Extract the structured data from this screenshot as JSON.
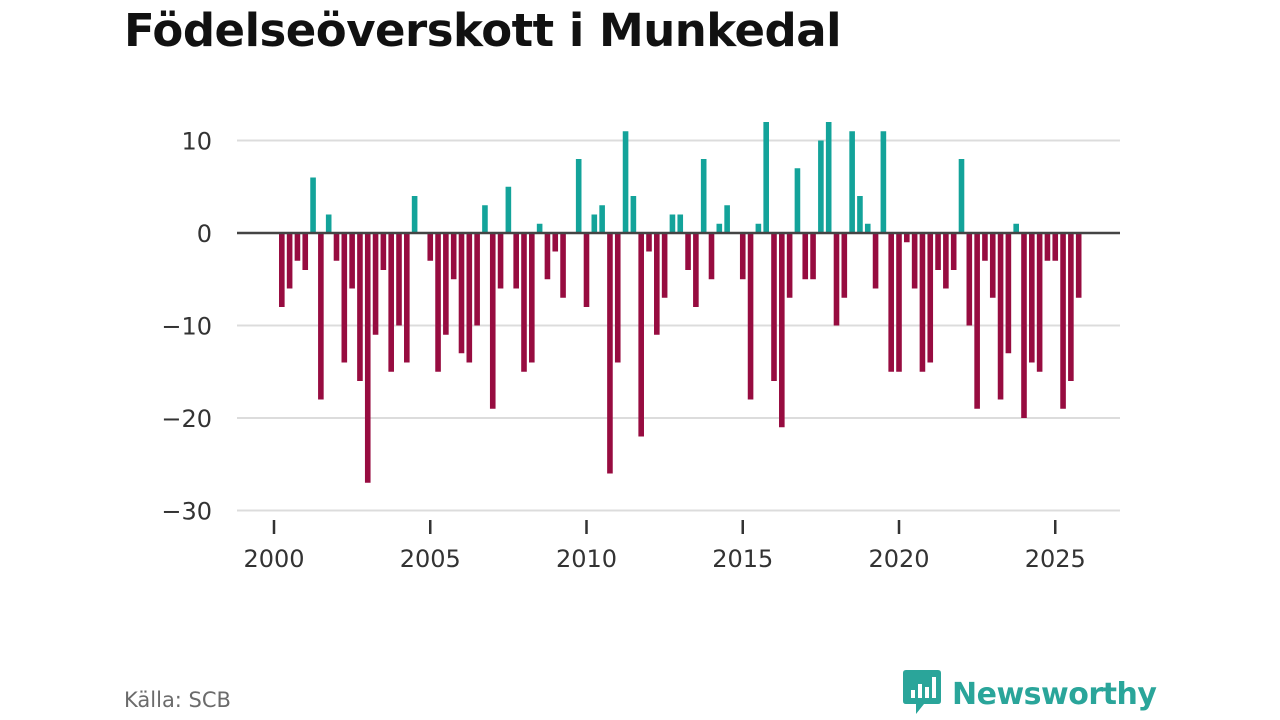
{
  "title": "Födelseöverskott i Munkedal",
  "source": "Källa: SCB",
  "brand": {
    "name": "Newsworthy",
    "icon": "newsworthy-logo-icon"
  },
  "colors": {
    "positive": "#13a39a",
    "negative": "#970c40",
    "grid": "#dcdcdc",
    "zero": "#444444",
    "text": "#333333"
  },
  "chart_data": {
    "type": "bar",
    "title": "Födelseöverskott i Munkedal",
    "xlabel": "",
    "ylabel": "",
    "x_start": 2000.25,
    "x_step": 0.25,
    "xlim": [
      1999.6,
      2027.0
    ],
    "ylim": [
      -30,
      13
    ],
    "y_ticks": [
      10,
      0,
      -10,
      -20,
      -30
    ],
    "y_tick_labels": [
      "10",
      "0",
      "−10",
      "−20",
      "−30"
    ],
    "x_ticks": [
      2000,
      2005,
      2010,
      2015,
      2020,
      2025
    ],
    "x_tick_labels": [
      "2000",
      "2005",
      "2010",
      "2015",
      "2020",
      "2025"
    ],
    "grid": true,
    "values": [
      -8,
      -6,
      -3,
      -4,
      6,
      -18,
      2,
      -3,
      -14,
      -6,
      -16,
      -27,
      -11,
      -4,
      -15,
      -10,
      -14,
      4,
      0,
      -3,
      -15,
      -11,
      -5,
      -13,
      -14,
      -10,
      3,
      -19,
      -6,
      5,
      -6,
      -15,
      -14,
      1,
      -5,
      -2,
      -7,
      0,
      8,
      -8,
      2,
      3,
      -26,
      -14,
      11,
      4,
      -22,
      -2,
      -11,
      -7,
      2,
      2,
      -4,
      -8,
      8,
      -5,
      1,
      3,
      0,
      -5,
      -18,
      1,
      12,
      -16,
      -21,
      -7,
      7,
      -5,
      -5,
      10,
      12,
      -10,
      -7,
      11,
      4,
      1,
      -6,
      11,
      -15,
      -15,
      -1,
      -6,
      -15,
      -14,
      -4,
      -6,
      -4,
      8,
      -10,
      -19,
      -3,
      -7,
      -18,
      -13,
      1,
      -20,
      -14,
      -15,
      -3,
      -3,
      -19,
      -16,
      -7
    ]
  }
}
